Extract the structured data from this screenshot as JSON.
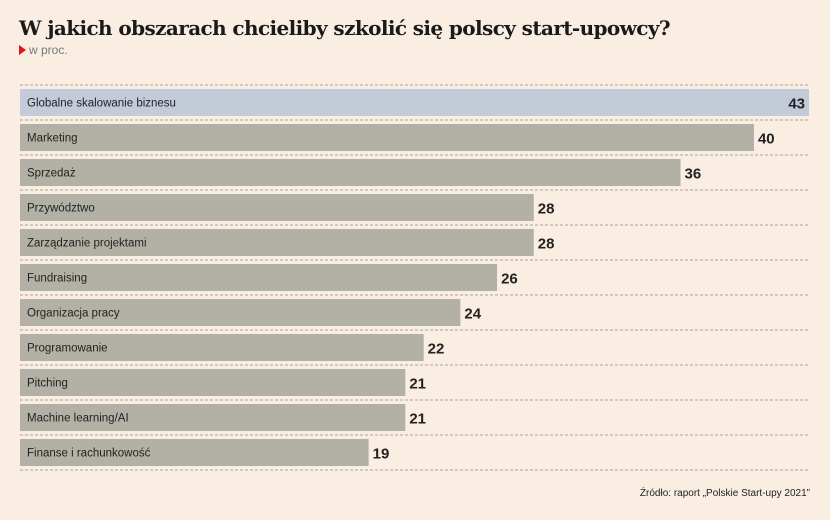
{
  "header": {
    "title": "W jakich obszarach chcieliby szkolić się polscy start-upowcy?",
    "subtitle": "w proc."
  },
  "source": "Źródło: raport „Polskie Start-upy 2021”",
  "colors": {
    "bar": "#b3b1a5",
    "bar_highlight": "#c3cbd9",
    "background": "#faeee3",
    "marker": "#e3131b"
  },
  "chart_data": {
    "type": "bar",
    "orientation": "horizontal",
    "categories": [
      "Globalne skalowanie biznesu",
      "Marketing",
      "Sprzedaż",
      "Przywództwo",
      "Zarządzanie projektami",
      "Fundraising",
      "Organizacja pracy",
      "Programowanie",
      "Pitching",
      "Machine learning/AI",
      "Finanse i rachunkowość"
    ],
    "values": [
      43,
      40,
      36,
      28,
      28,
      26,
      24,
      22,
      21,
      21,
      19
    ],
    "highlight_index": 0,
    "xlim": [
      0,
      43
    ],
    "grid": false
  }
}
